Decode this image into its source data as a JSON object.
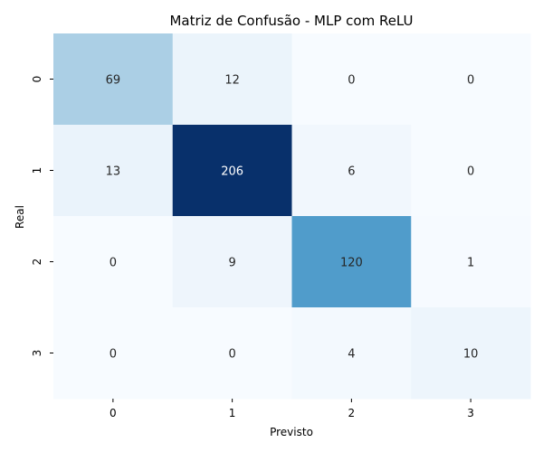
{
  "chart_data": {
    "type": "heatmap",
    "title": "Matriz de Confusão - MLP com ReLU",
    "xlabel": "Previsto",
    "ylabel": "Real",
    "x_categories": [
      "0",
      "1",
      "2",
      "3"
    ],
    "y_categories": [
      "0",
      "1",
      "2",
      "3"
    ],
    "matrix": [
      [
        69,
        12,
        0,
        0
      ],
      [
        13,
        206,
        6,
        0
      ],
      [
        0,
        9,
        120,
        1
      ],
      [
        0,
        0,
        4,
        10
      ]
    ],
    "colormap": "Blues",
    "colorbar": false,
    "grid": false,
    "value_range": [
      0,
      206
    ]
  }
}
